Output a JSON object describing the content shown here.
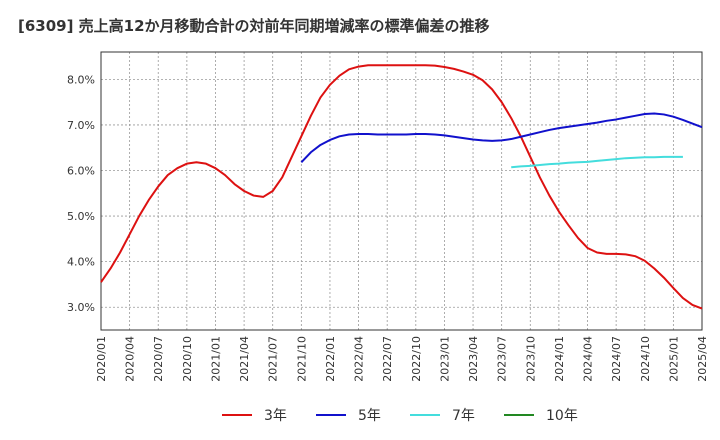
{
  "chart_data": {
    "type": "line",
    "title": "[6309]  売上高12か月移動合計の対前年同期増減率の標準偏差の推移",
    "xlabel": "",
    "ylabel": "",
    "ylim": [
      2.5,
      8.6
    ],
    "yticks": [
      3.0,
      4.0,
      5.0,
      6.0,
      7.0,
      8.0
    ],
    "ytick_labels": [
      "3.0%",
      "4.0%",
      "5.0%",
      "6.0%",
      "7.0%",
      "8.0%"
    ],
    "x_start": "2020-01",
    "x_end": "2025-04",
    "xtick_labels": [
      "2020/01",
      "2020/04",
      "2020/07",
      "2020/10",
      "2021/01",
      "2021/04",
      "2021/07",
      "2021/10",
      "2022/01",
      "2022/04",
      "2022/07",
      "2022/10",
      "2023/01",
      "2023/04",
      "2023/07",
      "2023/10",
      "2024/01",
      "2024/04",
      "2024/07",
      "2024/10",
      "2025/01",
      "2025/04"
    ],
    "grid": true,
    "legend_position": "bottom",
    "series": [
      {
        "name": "3年",
        "color": "#dd1111",
        "start": "2020-01",
        "values": [
          3.55,
          3.85,
          4.2,
          4.6,
          5.0,
          5.35,
          5.65,
          5.9,
          6.05,
          6.15,
          6.18,
          6.15,
          6.05,
          5.9,
          5.7,
          5.55,
          5.45,
          5.42,
          5.55,
          5.85,
          6.3,
          6.75,
          7.2,
          7.6,
          7.88,
          8.08,
          8.22,
          8.28,
          8.31,
          8.31,
          8.31,
          8.31,
          8.31,
          8.31,
          8.31,
          8.3,
          8.27,
          8.23,
          8.17,
          8.1,
          7.98,
          7.78,
          7.5,
          7.15,
          6.75,
          6.3,
          5.85,
          5.45,
          5.1,
          4.8,
          4.52,
          4.3,
          4.2,
          4.17,
          4.17,
          4.16,
          4.12,
          4.02,
          3.85,
          3.65,
          3.42,
          3.2,
          3.05,
          2.97
        ]
      },
      {
        "name": "5年",
        "color": "#1111cc",
        "start": "2021-10",
        "values": [
          6.18,
          6.4,
          6.56,
          6.67,
          6.75,
          6.79,
          6.8,
          6.8,
          6.79,
          6.79,
          6.79,
          6.79,
          6.8,
          6.8,
          6.79,
          6.77,
          6.74,
          6.71,
          6.68,
          6.66,
          6.65,
          6.66,
          6.69,
          6.74,
          6.79,
          6.84,
          6.89,
          6.93,
          6.96,
          6.99,
          7.02,
          7.05,
          7.09,
          7.12,
          7.16,
          7.2,
          7.24,
          7.25,
          7.23,
          7.18,
          7.11,
          7.03,
          6.95
        ]
      },
      {
        "name": "7年",
        "color": "#44dddd",
        "start": "2023-08",
        "values": [
          6.07,
          6.09,
          6.1,
          6.12,
          6.14,
          6.15,
          6.17,
          6.18,
          6.19,
          6.21,
          6.23,
          6.25,
          6.27,
          6.28,
          6.29,
          6.29,
          6.3,
          6.3,
          6.3
        ]
      },
      {
        "name": "10年",
        "color": "#228822",
        "start": "2025-01",
        "values": []
      }
    ]
  }
}
